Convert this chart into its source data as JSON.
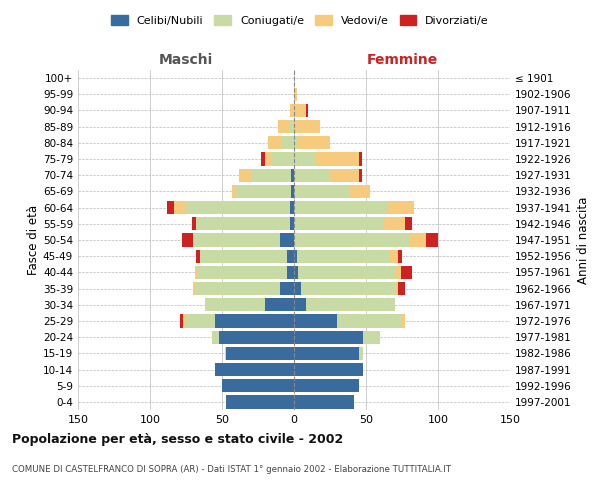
{
  "age_groups": [
    "0-4",
    "5-9",
    "10-14",
    "15-19",
    "20-24",
    "25-29",
    "30-34",
    "35-39",
    "40-44",
    "45-49",
    "50-54",
    "55-59",
    "60-64",
    "65-69",
    "70-74",
    "75-79",
    "80-84",
    "85-89",
    "90-94",
    "95-99",
    "100+"
  ],
  "birth_years": [
    "1997-2001",
    "1992-1996",
    "1987-1991",
    "1982-1986",
    "1977-1981",
    "1972-1976",
    "1967-1971",
    "1962-1966",
    "1957-1961",
    "1952-1956",
    "1947-1951",
    "1942-1946",
    "1937-1941",
    "1932-1936",
    "1927-1931",
    "1922-1926",
    "1917-1921",
    "1912-1916",
    "1907-1911",
    "1902-1906",
    "≤ 1901"
  ],
  "male": {
    "celibi": [
      47,
      50,
      55,
      47,
      52,
      55,
      20,
      10,
      5,
      5,
      10,
      3,
      3,
      2,
      2,
      0,
      0,
      0,
      0,
      0,
      0
    ],
    "coniugati": [
      0,
      0,
      0,
      1,
      5,
      20,
      42,
      58,
      62,
      60,
      60,
      65,
      72,
      38,
      28,
      15,
      8,
      3,
      1,
      0,
      0
    ],
    "vedovi": [
      0,
      0,
      0,
      0,
      0,
      2,
      0,
      2,
      2,
      0,
      0,
      0,
      8,
      3,
      8,
      5,
      10,
      8,
      2,
      0,
      0
    ],
    "divorziati": [
      0,
      0,
      0,
      0,
      0,
      2,
      0,
      0,
      0,
      3,
      8,
      3,
      5,
      0,
      0,
      3,
      0,
      0,
      0,
      0,
      0
    ]
  },
  "female": {
    "nubili": [
      42,
      45,
      48,
      45,
      48,
      30,
      8,
      5,
      3,
      2,
      0,
      0,
      0,
      0,
      0,
      0,
      0,
      0,
      0,
      0,
      0
    ],
    "coniugate": [
      0,
      0,
      0,
      3,
      12,
      45,
      62,
      65,
      68,
      65,
      80,
      62,
      65,
      38,
      25,
      15,
      3,
      0,
      0,
      0,
      0
    ],
    "vedove": [
      0,
      0,
      0,
      0,
      0,
      2,
      0,
      2,
      3,
      5,
      12,
      15,
      18,
      15,
      20,
      30,
      22,
      18,
      8,
      2,
      0
    ],
    "divorziate": [
      0,
      0,
      0,
      0,
      0,
      0,
      0,
      5,
      8,
      3,
      8,
      5,
      0,
      0,
      2,
      2,
      0,
      0,
      2,
      0,
      0
    ]
  },
  "colors": {
    "celibi_nubili": "#3a6b9f",
    "coniugati_e": "#c8dba4",
    "vedovi_e": "#f7cb7e",
    "divorziati_e": "#cc2222"
  },
  "xlim": 150,
  "title": "Popolazione per età, sesso e stato civile - 2002",
  "subtitle": "COMUNE DI CASTELFRANCO DI SOPRA (AR) - Dati ISTAT 1° gennaio 2002 - Elaborazione TUTTITALIA.IT",
  "ylabel_left": "Fasce di età",
  "ylabel_right": "Anni di nascita",
  "xlabel_left": "Maschi",
  "xlabel_right": "Femmine",
  "bg_color": "#ffffff",
  "grid_color": "#bbbbbb"
}
